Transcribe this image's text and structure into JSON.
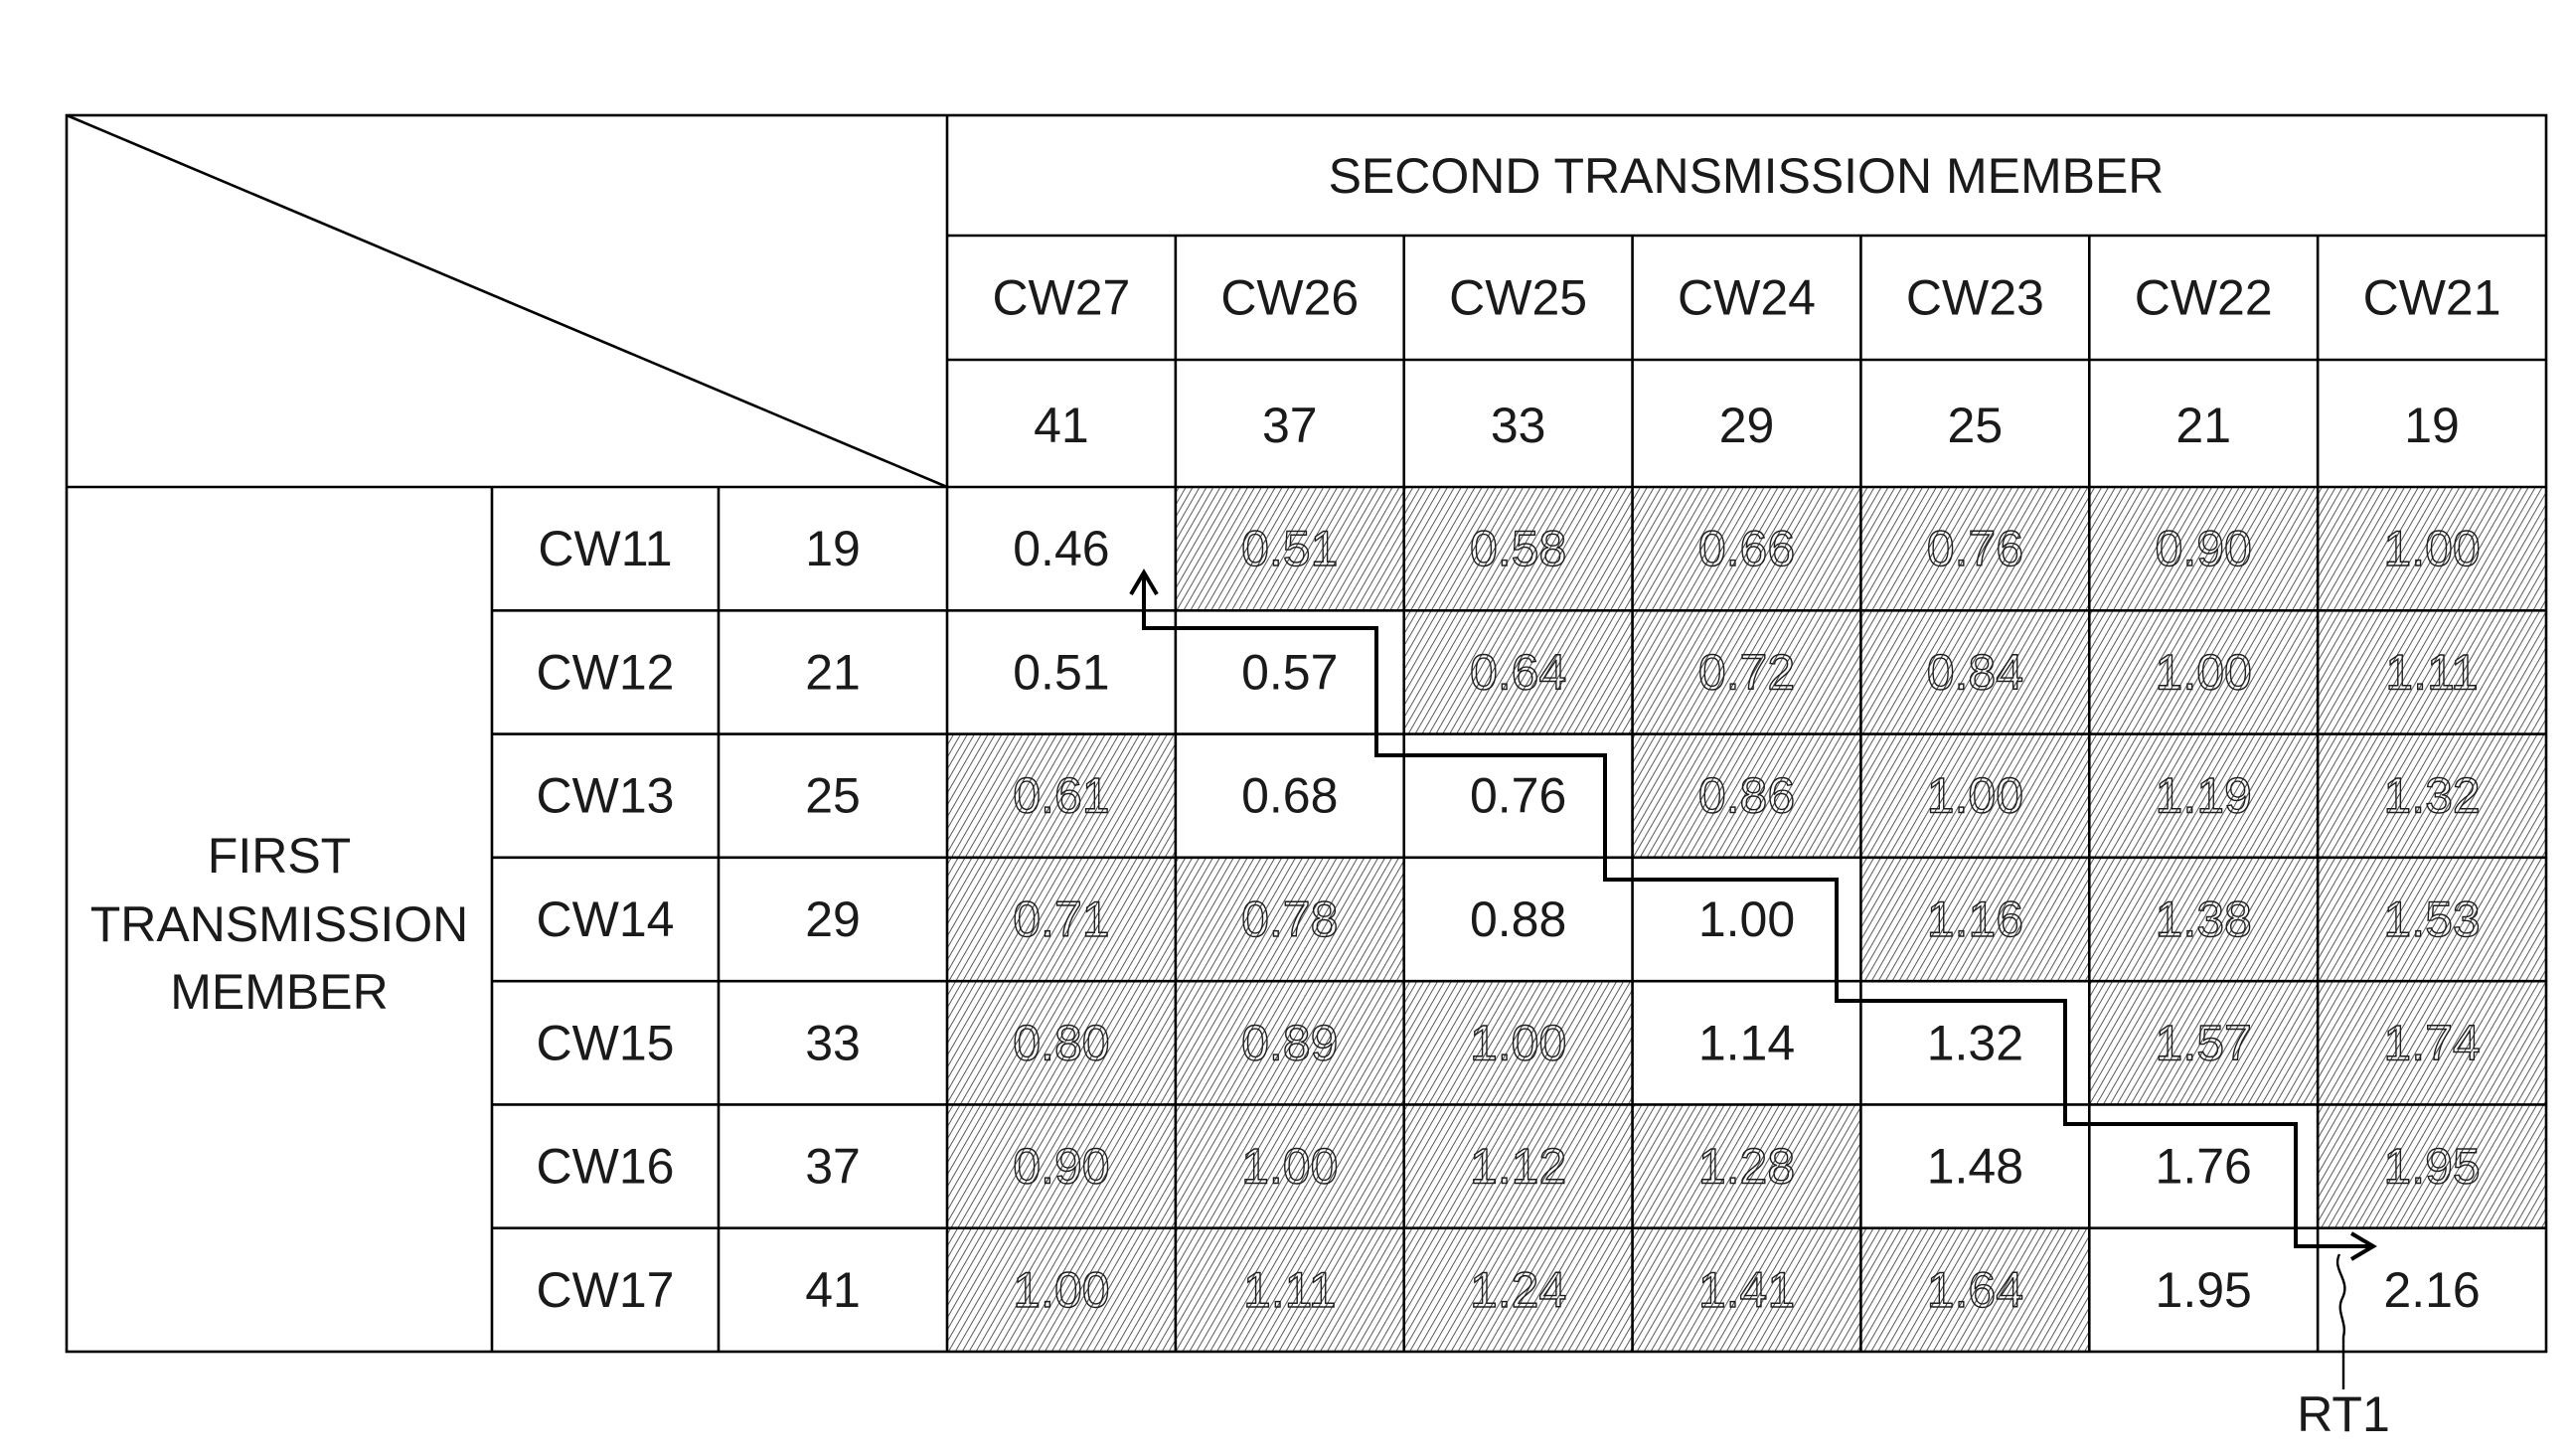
{
  "figure": {
    "column_group_label": "SECOND TRANSMISSION MEMBER",
    "row_group_label": [
      "FIRST",
      "TRANSMISSION",
      "MEMBER"
    ],
    "route_label": "RT1"
  },
  "table": {
    "columns": [
      {
        "name": "CW27",
        "value": "41"
      },
      {
        "name": "CW26",
        "value": "37"
      },
      {
        "name": "CW25",
        "value": "33"
      },
      {
        "name": "CW24",
        "value": "29"
      },
      {
        "name": "CW23",
        "value": "25"
      },
      {
        "name": "CW22",
        "value": "21"
      },
      {
        "name": "CW21",
        "value": "19"
      }
    ],
    "rows": [
      {
        "name": "CW11",
        "value": "19",
        "values": [
          "0.46",
          "0.51",
          "0.58",
          "0.66",
          "0.76",
          "0.90",
          "1.00"
        ],
        "hatched": [
          false,
          true,
          true,
          true,
          true,
          true,
          true
        ]
      },
      {
        "name": "CW12",
        "value": "21",
        "values": [
          "0.51",
          "0.57",
          "0.64",
          "0.72",
          "0.84",
          "1.00",
          "1.11"
        ],
        "hatched": [
          false,
          false,
          true,
          true,
          true,
          true,
          true
        ]
      },
      {
        "name": "CW13",
        "value": "25",
        "values": [
          "0.61",
          "0.68",
          "0.76",
          "0.86",
          "1.00",
          "1.19",
          "1.32"
        ],
        "hatched": [
          true,
          false,
          false,
          true,
          true,
          true,
          true
        ]
      },
      {
        "name": "CW14",
        "value": "29",
        "values": [
          "0.71",
          "0.78",
          "0.88",
          "1.00",
          "1.16",
          "1.38",
          "1.53"
        ],
        "hatched": [
          true,
          true,
          false,
          false,
          true,
          true,
          true
        ]
      },
      {
        "name": "CW15",
        "value": "33",
        "values": [
          "0.80",
          "0.89",
          "1.00",
          "1.14",
          "1.32",
          "1.57",
          "1.74"
        ],
        "hatched": [
          true,
          true,
          true,
          false,
          false,
          true,
          true
        ]
      },
      {
        "name": "CW16",
        "value": "37",
        "values": [
          "0.90",
          "1.00",
          "1.12",
          "1.28",
          "1.48",
          "1.76",
          "1.95"
        ],
        "hatched": [
          true,
          true,
          true,
          true,
          false,
          false,
          true
        ]
      },
      {
        "name": "CW17",
        "value": "41",
        "values": [
          "1.00",
          "1.11",
          "1.24",
          "1.41",
          "1.64",
          "1.95",
          "2.16"
        ],
        "hatched": [
          true,
          true,
          true,
          true,
          true,
          false,
          false
        ]
      }
    ]
  },
  "colors": {
    "line": "#000000",
    "hatch": "#474747",
    "text": "#1a1a1a",
    "background": "#ffffff"
  }
}
